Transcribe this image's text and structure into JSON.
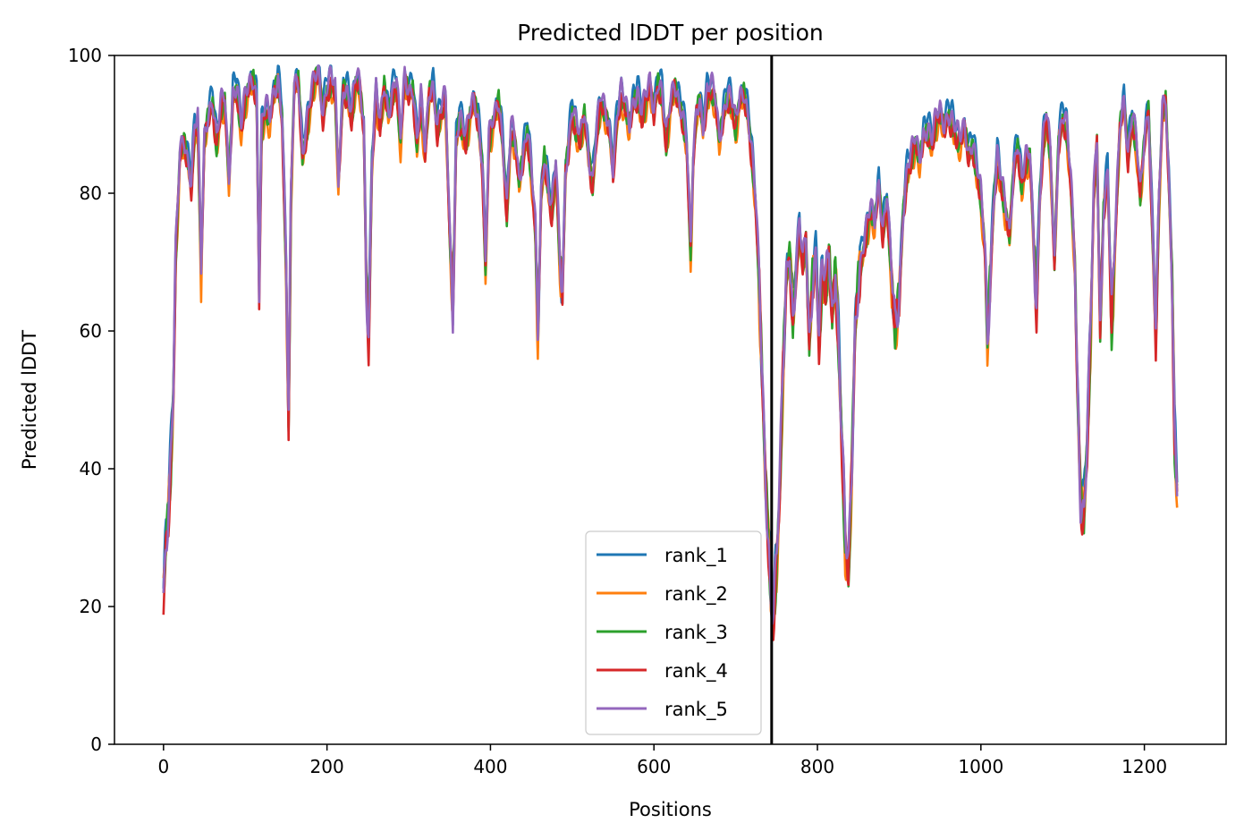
{
  "chart_data": {
    "type": "line",
    "title": "Predicted lDDT per position",
    "xlabel": "Positions",
    "ylabel": "Predicted lDDT",
    "xlim": [
      -60,
      1300
    ],
    "ylim": [
      0,
      100
    ],
    "xticks": [
      0,
      200,
      400,
      600,
      800,
      1000,
      1200
    ],
    "yticks": [
      0,
      20,
      40,
      60,
      80,
      100
    ],
    "grid": false,
    "legend_position": "lower-center",
    "divider_x": 744,
    "series": [
      {
        "name": "rank_1",
        "color": "#1f77b4",
        "offset": 0.6
      },
      {
        "name": "rank_2",
        "color": "#ff7f0e",
        "offset": -1.6
      },
      {
        "name": "rank_3",
        "color": "#2ca02c",
        "offset": -0.9
      },
      {
        "name": "rank_4",
        "color": "#d62728",
        "offset": -1.2
      },
      {
        "name": "rank_5",
        "color": "#9467bd",
        "offset": 0.0
      }
    ],
    "profile": [
      [
        0,
        22
      ],
      [
        3,
        30
      ],
      [
        6,
        35
      ],
      [
        9,
        42
      ],
      [
        12,
        52
      ],
      [
        15,
        72
      ],
      [
        18,
        80
      ],
      [
        20,
        86
      ],
      [
        25,
        88
      ],
      [
        30,
        85
      ],
      [
        34,
        82
      ],
      [
        38,
        90
      ],
      [
        42,
        91
      ],
      [
        46,
        69
      ],
      [
        50,
        88
      ],
      [
        55,
        92
      ],
      [
        60,
        94
      ],
      [
        65,
        88
      ],
      [
        70,
        93
      ],
      [
        75,
        94
      ],
      [
        80,
        82
      ],
      [
        85,
        95
      ],
      [
        90,
        96
      ],
      [
        95,
        90
      ],
      [
        100,
        94
      ],
      [
        105,
        96
      ],
      [
        110,
        97
      ],
      [
        114,
        94
      ],
      [
        117,
        67
      ],
      [
        120,
        90
      ],
      [
        125,
        93
      ],
      [
        130,
        91
      ],
      [
        135,
        95
      ],
      [
        140,
        97
      ],
      [
        145,
        92
      ],
      [
        150,
        70
      ],
      [
        153,
        47
      ],
      [
        156,
        80
      ],
      [
        160,
        96
      ],
      [
        165,
        97
      ],
      [
        170,
        86
      ],
      [
        175,
        90
      ],
      [
        180,
        94
      ],
      [
        185,
        97
      ],
      [
        190,
        98
      ],
      [
        195,
        92
      ],
      [
        200,
        96
      ],
      [
        205,
        97
      ],
      [
        210,
        95
      ],
      [
        214,
        82
      ],
      [
        220,
        96
      ],
      [
        225,
        95
      ],
      [
        230,
        92
      ],
      [
        235,
        97
      ],
      [
        240,
        96
      ],
      [
        245,
        90
      ],
      [
        248,
        68
      ],
      [
        251,
        60
      ],
      [
        255,
        85
      ],
      [
        260,
        95
      ],
      [
        265,
        90
      ],
      [
        270,
        96
      ],
      [
        275,
        92
      ],
      [
        280,
        95
      ],
      [
        285,
        97
      ],
      [
        290,
        88
      ],
      [
        295,
        97
      ],
      [
        300,
        95
      ],
      [
        305,
        96
      ],
      [
        310,
        88
      ],
      [
        315,
        94
      ],
      [
        320,
        86
      ],
      [
        325,
        95
      ],
      [
        330,
        96
      ],
      [
        335,
        90
      ],
      [
        340,
        93
      ],
      [
        345,
        94
      ],
      [
        350,
        75
      ],
      [
        354,
        63
      ],
      [
        358,
        88
      ],
      [
        362,
        92
      ],
      [
        366,
        90
      ],
      [
        370,
        88
      ],
      [
        375,
        92
      ],
      [
        380,
        94
      ],
      [
        385,
        91
      ],
      [
        390,
        85
      ],
      [
        394,
        70
      ],
      [
        398,
        88
      ],
      [
        402,
        90
      ],
      [
        406,
        92
      ],
      [
        410,
        94
      ],
      [
        415,
        88
      ],
      [
        420,
        78
      ],
      [
        425,
        90
      ],
      [
        430,
        88
      ],
      [
        435,
        82
      ],
      [
        440,
        86
      ],
      [
        445,
        90
      ],
      [
        450,
        84
      ],
      [
        455,
        75
      ],
      [
        458,
        60
      ],
      [
        462,
        80
      ],
      [
        466,
        86
      ],
      [
        470,
        82
      ],
      [
        475,
        78
      ],
      [
        480,
        85
      ],
      [
        485,
        70
      ],
      [
        488,
        66
      ],
      [
        492,
        84
      ],
      [
        496,
        88
      ],
      [
        500,
        93
      ],
      [
        505,
        90
      ],
      [
        510,
        88
      ],
      [
        515,
        92
      ],
      [
        520,
        86
      ],
      [
        525,
        82
      ],
      [
        530,
        90
      ],
      [
        535,
        94
      ],
      [
        540,
        92
      ],
      [
        545,
        90
      ],
      [
        550,
        84
      ],
      [
        555,
        92
      ],
      [
        560,
        95
      ],
      [
        565,
        93
      ],
      [
        570,
        90
      ],
      [
        575,
        94
      ],
      [
        580,
        95
      ],
      [
        585,
        92
      ],
      [
        590,
        94
      ],
      [
        595,
        96
      ],
      [
        600,
        92
      ],
      [
        605,
        97
      ],
      [
        610,
        95
      ],
      [
        615,
        88
      ],
      [
        620,
        93
      ],
      [
        625,
        96
      ],
      [
        630,
        94
      ],
      [
        635,
        92
      ],
      [
        640,
        88
      ],
      [
        645,
        72
      ],
      [
        648,
        85
      ],
      [
        652,
        92
      ],
      [
        656,
        94
      ],
      [
        660,
        90
      ],
      [
        665,
        95
      ],
      [
        670,
        96
      ],
      [
        675,
        94
      ],
      [
        680,
        88
      ],
      [
        685,
        92
      ],
      [
        690,
        95
      ],
      [
        695,
        94
      ],
      [
        700,
        90
      ],
      [
        705,
        94
      ],
      [
        710,
        95
      ],
      [
        715,
        92
      ],
      [
        720,
        86
      ],
      [
        724,
        80
      ],
      [
        728,
        70
      ],
      [
        732,
        55
      ],
      [
        736,
        40
      ],
      [
        740,
        30
      ],
      [
        743,
        22
      ],
      [
        746,
        20
      ],
      [
        750,
        27
      ],
      [
        754,
        38
      ],
      [
        758,
        55
      ],
      [
        762,
        68
      ],
      [
        766,
        72
      ],
      [
        770,
        62
      ],
      [
        774,
        70
      ],
      [
        778,
        76
      ],
      [
        782,
        70
      ],
      [
        786,
        74
      ],
      [
        790,
        58
      ],
      [
        794,
        68
      ],
      [
        798,
        72
      ],
      [
        802,
        60
      ],
      [
        806,
        70
      ],
      [
        810,
        66
      ],
      [
        814,
        72
      ],
      [
        818,
        62
      ],
      [
        822,
        70
      ],
      [
        826,
        58
      ],
      [
        830,
        45
      ],
      [
        834,
        30
      ],
      [
        838,
        25
      ],
      [
        842,
        40
      ],
      [
        846,
        60
      ],
      [
        850,
        68
      ],
      [
        855,
        72
      ],
      [
        860,
        75
      ],
      [
        865,
        78
      ],
      [
        870,
        76
      ],
      [
        875,
        82
      ],
      [
        880,
        75
      ],
      [
        885,
        80
      ],
      [
        890,
        70
      ],
      [
        895,
        60
      ],
      [
        900,
        65
      ],
      [
        905,
        78
      ],
      [
        910,
        84
      ],
      [
        915,
        86
      ],
      [
        920,
        88
      ],
      [
        925,
        85
      ],
      [
        930,
        89
      ],
      [
        935,
        90
      ],
      [
        940,
        88
      ],
      [
        945,
        91
      ],
      [
        950,
        92
      ],
      [
        955,
        90
      ],
      [
        960,
        92
      ],
      [
        965,
        91
      ],
      [
        970,
        89
      ],
      [
        975,
        88
      ],
      [
        980,
        90
      ],
      [
        985,
        86
      ],
      [
        990,
        88
      ],
      [
        995,
        84
      ],
      [
        1000,
        80
      ],
      [
        1005,
        72
      ],
      [
        1008,
        58
      ],
      [
        1012,
        70
      ],
      [
        1016,
        80
      ],
      [
        1020,
        86
      ],
      [
        1025,
        82
      ],
      [
        1030,
        78
      ],
      [
        1035,
        74
      ],
      [
        1040,
        84
      ],
      [
        1045,
        88
      ],
      [
        1050,
        82
      ],
      [
        1055,
        85
      ],
      [
        1060,
        86
      ],
      [
        1065,
        72
      ],
      [
        1068,
        64
      ],
      [
        1072,
        80
      ],
      [
        1076,
        88
      ],
      [
        1080,
        92
      ],
      [
        1085,
        86
      ],
      [
        1090,
        70
      ],
      [
        1095,
        88
      ],
      [
        1100,
        92
      ],
      [
        1105,
        90
      ],
      [
        1110,
        82
      ],
      [
        1115,
        70
      ],
      [
        1118,
        52
      ],
      [
        1122,
        36
      ],
      [
        1126,
        34
      ],
      [
        1130,
        45
      ],
      [
        1134,
        60
      ],
      [
        1138,
        80
      ],
      [
        1142,
        88
      ],
      [
        1146,
        60
      ],
      [
        1150,
        78
      ],
      [
        1155,
        84
      ],
      [
        1160,
        62
      ],
      [
        1165,
        76
      ],
      [
        1170,
        90
      ],
      [
        1175,
        94
      ],
      [
        1180,
        86
      ],
      [
        1185,
        92
      ],
      [
        1190,
        88
      ],
      [
        1195,
        80
      ],
      [
        1200,
        88
      ],
      [
        1205,
        93
      ],
      [
        1210,
        75
      ],
      [
        1214,
        60
      ],
      [
        1218,
        80
      ],
      [
        1222,
        92
      ],
      [
        1226,
        94
      ],
      [
        1230,
        82
      ],
      [
        1234,
        68
      ],
      [
        1237,
        45
      ],
      [
        1240,
        38
      ]
    ]
  }
}
